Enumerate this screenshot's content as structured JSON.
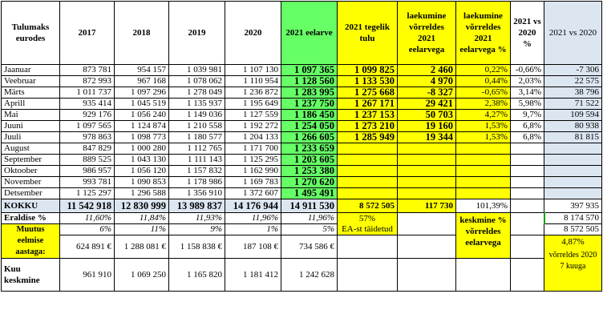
{
  "headers": {
    "label": "Tulumaks eurodes",
    "y2017": "2017",
    "y2018": "2018",
    "y2019": "2019",
    "y2020": "2020",
    "budget": "2021 eelarve",
    "actual": "2021 tegelik tulu",
    "diff": "laekumine võrreldes 2021 eelarvega",
    "diff_pct": "laekumine võrreldes 2021 eelarvega %",
    "vs_pct": "2021 vs 2020 %",
    "vs_abs": "2021 vs 2020"
  },
  "months": [
    {
      "name": "Jaanuar",
      "y2017": "873 781",
      "y2018": "954 157",
      "y2019": "1 039 981",
      "y2020": "1 107 130",
      "budget": "1 097 365",
      "actual": "1 099 825",
      "diff": "2 460",
      "diff_pct": "0,22%",
      "vs_pct": "-0,66%",
      "vs_abs": "-7 306"
    },
    {
      "name": "Veebruar",
      "y2017": "872 993",
      "y2018": "967 168",
      "y2019": "1 078 062",
      "y2020": "1 110 954",
      "budget": "1 128 560",
      "actual": "1 133 530",
      "diff": "4 970",
      "diff_pct": "0,44%",
      "vs_pct": "2,03%",
      "vs_abs": "22 575"
    },
    {
      "name": "Märts",
      "y2017": "1 011 737",
      "y2018": "1 097 296",
      "y2019": "1 278 049",
      "y2020": "1 236 872",
      "budget": "1 283 995",
      "actual": "1 275 668",
      "diff": "-8 327",
      "diff_pct": "-0,65%",
      "vs_pct": "3,14%",
      "vs_abs": "38 796"
    },
    {
      "name": "Aprill",
      "y2017": "935 414",
      "y2018": "1 045 519",
      "y2019": "1 135 937",
      "y2020": "1 195 649",
      "budget": "1 237 750",
      "actual": "1 267 171",
      "diff": "29 421",
      "diff_pct": "2,38%",
      "vs_pct": "5,98%",
      "vs_abs": "71 522"
    },
    {
      "name": "Mai",
      "y2017": "929 176",
      "y2018": "1 056 240",
      "y2019": "1 149 036",
      "y2020": "1 127 559",
      "budget": "1 186 450",
      "actual": "1 237 153",
      "diff": "50 703",
      "diff_pct": "4,27%",
      "vs_pct": "9,7%",
      "vs_abs": "109 594"
    },
    {
      "name": "Juuni",
      "y2017": "1 097 565",
      "y2018": "1 124 874",
      "y2019": "1 210 558",
      "y2020": "1 192 272",
      "budget": "1 254 050",
      "actual": "1 273 210",
      "diff": "19 160",
      "diff_pct": "1,53%",
      "vs_pct": "6,8%",
      "vs_abs": "80 938"
    },
    {
      "name": "Juuli",
      "y2017": "978 863",
      "y2018": "1 098 773",
      "y2019": "1 180 577",
      "y2020": "1 204 133",
      "budget": "1 266 605",
      "actual": "1 285 949",
      "diff": "19 344",
      "diff_pct": "1,53%",
      "vs_pct": "6,8%",
      "vs_abs": "81 815"
    },
    {
      "name": "August",
      "y2017": "847 829",
      "y2018": "1 000 280",
      "y2019": "1 112 765",
      "y2020": "1 171 700",
      "budget": "1 233 659",
      "actual": "",
      "diff": "",
      "diff_pct": "",
      "vs_pct": "",
      "vs_abs": ""
    },
    {
      "name": "September",
      "y2017": "889 525",
      "y2018": "1 043 130",
      "y2019": "1 111 143",
      "y2020": "1 125 295",
      "budget": "1 203 605",
      "actual": "",
      "diff": "",
      "diff_pct": "",
      "vs_pct": "",
      "vs_abs": ""
    },
    {
      "name": "Oktoober",
      "y2017": "986 957",
      "y2018": "1 056 120",
      "y2019": "1 157 832",
      "y2020": "1 162 990",
      "budget": "1 253 380",
      "actual": "",
      "diff": "",
      "diff_pct": "",
      "vs_pct": "",
      "vs_abs": ""
    },
    {
      "name": "November",
      "y2017": "993 781",
      "y2018": "1 090 853",
      "y2019": "1 178 986",
      "y2020": "1 169 783",
      "budget": "1 270 620",
      "actual": "",
      "diff": "",
      "diff_pct": "",
      "vs_pct": "",
      "vs_abs": ""
    },
    {
      "name": "Detsember",
      "y2017": "1 125 297",
      "y2018": "1 296 588",
      "y2019": "1 356 910",
      "y2020": "1 372 607",
      "budget": "1 495 491",
      "actual": "",
      "diff": "",
      "diff_pct": "",
      "vs_pct": "",
      "vs_abs": ""
    }
  ],
  "total": {
    "name": "KOKKU",
    "y2017": "11 542 918",
    "y2018": "12 830 999",
    "y2019": "13 989 837",
    "y2020": "14 176 944",
    "budget": "14 911 530",
    "actual": "8 572 505",
    "diff": "117 730",
    "diff_pct": "101,39%",
    "vs_pct": "",
    "vs_abs": "397 935"
  },
  "share": {
    "name": "Eraldise %",
    "y2017": "11,60%",
    "y2018": "11,84%",
    "y2019": "11,93%",
    "y2020": "11,96%",
    "budget": "11,96%",
    "actual": "57%",
    "actual_note": "EA-st täidetud",
    "diff_note": "keskmine % võrreldes eelarvega",
    "vs_abs_1": "8 174 570",
    "vs_abs_2": "8 572 505"
  },
  "change": {
    "name": "Muutus eelmise aastaga:",
    "pct_2017": "6%",
    "pct_2018": "11%",
    "pct_2019": "9%",
    "pct_2020": "1%",
    "pct_budget": "5%",
    "eur_2017": "624 891 €",
    "eur_2018": "1 288 081 €",
    "eur_2019": "1 158 838 €",
    "eur_2020": "187 108 €",
    "eur_budget": "734 586 €",
    "vs_pct": "4,87%",
    "vs_note": "võrreldes 2020 7 kuuga"
  },
  "avg": {
    "name": "Kuu keskmine",
    "y2017": "961 910",
    "y2018": "1 069 250",
    "y2019": "1 165 820",
    "y2020": "1 181 412",
    "budget": "1 242 628"
  },
  "colors": {
    "green": "#66ff66",
    "yellow": "#ffff00",
    "blue": "#dce6f1"
  }
}
